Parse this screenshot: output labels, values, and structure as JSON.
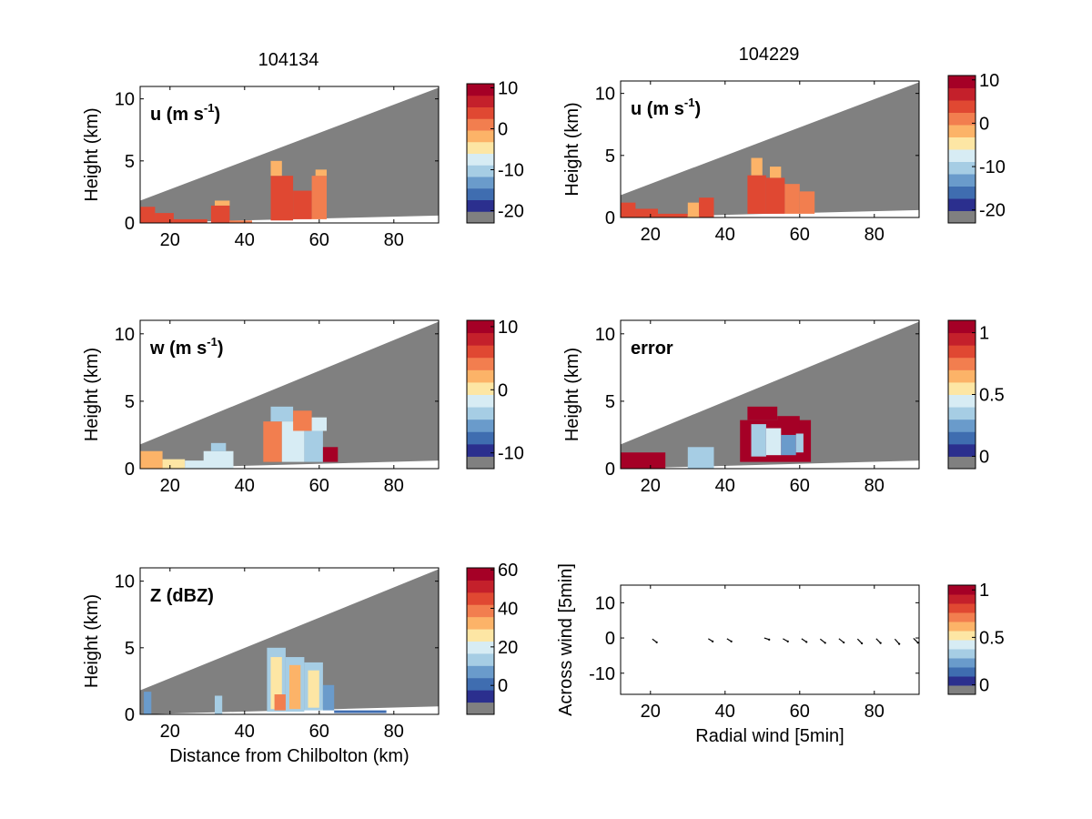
{
  "figure": {
    "timestamps": [
      "104134",
      "104229"
    ]
  },
  "palette": {
    "missing": "#808080",
    "levels": [
      "#2b2f8e",
      "#3f6db0",
      "#6a9bcb",
      "#a6cde4",
      "#d7ecf4",
      "#fde6a4",
      "#fcb368",
      "#f27e4f",
      "#e04832",
      "#c4202b",
      "#a50026"
    ]
  },
  "chart_data": [
    {
      "type": "heatmap",
      "panel": "u-104134",
      "title": "104134",
      "annotation": "u (m s",
      "annotation_sup": "-1",
      "annotation_close": ")",
      "xlabel": "",
      "ylabel": "Height (km)",
      "xlim": [
        12,
        92
      ],
      "ylim": [
        0,
        11
      ],
      "xticks": [
        "20",
        "40",
        "60",
        "80"
      ],
      "yticks": [
        "0",
        "5",
        "10"
      ],
      "scan": {
        "x_start": 12,
        "x_end": 92,
        "top_start": 1.8,
        "top_end": 10.9,
        "base_start": 0,
        "base_end": 0.6
      },
      "colorbar": {
        "range": [
          -23,
          11
        ],
        "ticks": [
          {
            "value": 10,
            "label": "10"
          },
          {
            "value": 0,
            "label": "0"
          },
          {
            "value": -10,
            "label": "-10"
          },
          {
            "value": -20,
            "label": "-20"
          }
        ]
      },
      "cells": [
        {
          "x": [
            12,
            16
          ],
          "y": [
            0.0,
            1.3
          ],
          "value": 3
        },
        {
          "x": [
            16,
            21
          ],
          "y": [
            0.0,
            0.8
          ],
          "value": 4
        },
        {
          "x": [
            21,
            30
          ],
          "y": [
            0.0,
            0.3
          ],
          "value": 2
        },
        {
          "x": [
            31,
            36
          ],
          "y": [
            0.0,
            1.4
          ],
          "value": 2
        },
        {
          "x": [
            32,
            36
          ],
          "y": [
            1.4,
            1.8
          ],
          "value": -4
        },
        {
          "x": [
            36,
            42
          ],
          "y": [
            0.0,
            0.2
          ],
          "value": 1
        },
        {
          "x": [
            47,
            53
          ],
          "y": [
            0.2,
            3.8
          ],
          "value": 2
        },
        {
          "x": [
            47,
            50
          ],
          "y": [
            3.8,
            5.0
          ],
          "value": -3
        },
        {
          "x": [
            53,
            58
          ],
          "y": [
            0.3,
            2.6
          ],
          "value": 2
        },
        {
          "x": [
            58,
            62
          ],
          "y": [
            0.3,
            3.8
          ],
          "value": 1
        },
        {
          "x": [
            59,
            62
          ],
          "y": [
            3.8,
            4.3
          ],
          "value": -4
        }
      ]
    },
    {
      "type": "heatmap",
      "panel": "u-104229",
      "title": "104229",
      "annotation": "u (m s",
      "annotation_sup": "-1",
      "annotation_close": ")",
      "xlabel": "",
      "ylabel": "Height (km)",
      "xlim": [
        12,
        92
      ],
      "ylim": [
        0,
        11
      ],
      "xticks": [
        "20",
        "40",
        "60",
        "80"
      ],
      "yticks": [
        "0",
        "5",
        "10"
      ],
      "scan": {
        "x_start": 12,
        "x_end": 92,
        "top_start": 1.8,
        "top_end": 10.9,
        "base_start": 0,
        "base_end": 0.6
      },
      "colorbar": {
        "range": [
          -23,
          11
        ],
        "ticks": [
          {
            "value": 10,
            "label": "10"
          },
          {
            "value": 0,
            "label": "0"
          },
          {
            "value": -10,
            "label": "-10"
          },
          {
            "value": -20,
            "label": "-20"
          }
        ]
      },
      "cells": [
        {
          "x": [
            12,
            16
          ],
          "y": [
            0.0,
            1.2
          ],
          "value": 3
        },
        {
          "x": [
            16,
            22
          ],
          "y": [
            0.0,
            0.7
          ],
          "value": 4
        },
        {
          "x": [
            22,
            30
          ],
          "y": [
            0.0,
            0.3
          ],
          "value": 2
        },
        {
          "x": [
            30,
            33
          ],
          "y": [
            0.0,
            1.2
          ],
          "value": -2
        },
        {
          "x": [
            33,
            37
          ],
          "y": [
            0.0,
            1.6
          ],
          "value": 2
        },
        {
          "x": [
            46,
            51
          ],
          "y": [
            0.3,
            3.4
          ],
          "value": 2
        },
        {
          "x": [
            47,
            50
          ],
          "y": [
            3.4,
            4.8
          ],
          "value": -3
        },
        {
          "x": [
            51,
            56
          ],
          "y": [
            0.3,
            3.2
          ],
          "value": 2
        },
        {
          "x": [
            52,
            55
          ],
          "y": [
            3.2,
            4.1
          ],
          "value": -4
        },
        {
          "x": [
            56,
            60
          ],
          "y": [
            0.3,
            2.7
          ],
          "value": 1
        },
        {
          "x": [
            60,
            64
          ],
          "y": [
            0.3,
            2.1
          ],
          "value": 1
        }
      ]
    },
    {
      "type": "heatmap",
      "panel": "w-104134",
      "title": "",
      "annotation": "w (m s",
      "annotation_sup": "-1",
      "annotation_close": ")",
      "xlabel": "",
      "ylabel": "Height (km)",
      "xlim": [
        12,
        92
      ],
      "ylim": [
        0,
        11
      ],
      "xticks": [
        "20",
        "40",
        "60",
        "80"
      ],
      "yticks": [
        "0",
        "5",
        "10"
      ],
      "scan": {
        "x_start": 12,
        "x_end": 92,
        "top_start": 1.8,
        "top_end": 10.9,
        "base_start": 0,
        "base_end": 0.6
      },
      "colorbar": {
        "range": [
          -12.5,
          11
        ],
        "ticks": [
          {
            "value": 10,
            "label": "10"
          },
          {
            "value": 0,
            "label": "0"
          },
          {
            "value": -10,
            "label": "-10"
          }
        ]
      },
      "cells": [
        {
          "x": [
            12,
            18
          ],
          "y": [
            0.0,
            1.3
          ],
          "value": 2
        },
        {
          "x": [
            18,
            24
          ],
          "y": [
            0.0,
            0.7
          ],
          "value": -1
        },
        {
          "x": [
            24,
            30
          ],
          "y": [
            0.0,
            0.6
          ],
          "value": -2
        },
        {
          "x": [
            29,
            37
          ],
          "y": [
            0.0,
            1.3
          ],
          "value": -2
        },
        {
          "x": [
            31,
            35
          ],
          "y": [
            1.3,
            1.9
          ],
          "value": -4
        },
        {
          "x": [
            45,
            50
          ],
          "y": [
            0.5,
            3.5
          ],
          "value": 4
        },
        {
          "x": [
            47,
            53
          ],
          "y": [
            3.5,
            4.6
          ],
          "value": -5
        },
        {
          "x": [
            50,
            56
          ],
          "y": [
            0.5,
            3.5
          ],
          "value": -3
        },
        {
          "x": [
            53,
            58
          ],
          "y": [
            2.8,
            4.3
          ],
          "value": 3
        },
        {
          "x": [
            56,
            61
          ],
          "y": [
            0.5,
            2.8
          ],
          "value": -6
        },
        {
          "x": [
            58,
            62
          ],
          "y": [
            2.8,
            3.8
          ],
          "value": -2
        },
        {
          "x": [
            61,
            65
          ],
          "y": [
            0.5,
            1.6
          ],
          "value": 9
        }
      ]
    },
    {
      "type": "heatmap",
      "panel": "error-104229",
      "title": "",
      "annotation": "error",
      "annotation_sup": "",
      "annotation_close": "",
      "xlabel": "",
      "ylabel": "Height (km)",
      "xlim": [
        12,
        92
      ],
      "ylim": [
        0,
        11
      ],
      "xticks": [
        "20",
        "40",
        "60",
        "80"
      ],
      "yticks": [
        "0",
        "5",
        "10"
      ],
      "scan": {
        "x_start": 12,
        "x_end": 92,
        "top_start": 1.8,
        "top_end": 10.9,
        "base_start": 0,
        "base_end": 0.6
      },
      "colorbar": {
        "range": [
          -0.1,
          1.1
        ],
        "ticks": [
          {
            "value": 1,
            "label": "1"
          },
          {
            "value": 0.5,
            "label": "0.5"
          },
          {
            "value": 0,
            "label": "0"
          }
        ]
      },
      "cells": [
        {
          "x": [
            12,
            24
          ],
          "y": [
            0.0,
            1.2
          ],
          "value": 1.0
        },
        {
          "x": [
            30,
            37
          ],
          "y": [
            0.0,
            1.6
          ],
          "value": 0.3
        },
        {
          "x": [
            44,
            63
          ],
          "y": [
            0.5,
            3.6
          ],
          "value": 1.0
        },
        {
          "x": [
            46,
            54
          ],
          "y": [
            3.6,
            4.6
          ],
          "value": 1.0
        },
        {
          "x": [
            54,
            60
          ],
          "y": [
            3.0,
            3.9
          ],
          "value": 1.0
        },
        {
          "x": [
            47,
            51
          ],
          "y": [
            0.9,
            3.3
          ],
          "value": 0.3
        },
        {
          "x": [
            51,
            55
          ],
          "y": [
            1.0,
            3.0
          ],
          "value": 0.4
        },
        {
          "x": [
            55,
            59
          ],
          "y": [
            1.0,
            2.5
          ],
          "value": 0.2
        },
        {
          "x": [
            59,
            61
          ],
          "y": [
            1.2,
            2.6
          ],
          "value": 0.3
        }
      ]
    },
    {
      "type": "heatmap",
      "panel": "Z-104134",
      "title": "",
      "annotation": "Z (dBZ)",
      "annotation_sup": "",
      "annotation_close": "",
      "xlabel": "Distance from Chilbolton (km)",
      "ylabel": "Height (km)",
      "xlim": [
        12,
        92
      ],
      "ylim": [
        0,
        11
      ],
      "xticks": [
        "20",
        "40",
        "60",
        "80"
      ],
      "yticks": [
        "0",
        "5",
        "10"
      ],
      "scan": {
        "x_start": 12,
        "x_end": 92,
        "top_start": 1.8,
        "top_end": 10.9,
        "base_start": 0,
        "base_end": 0.6
      },
      "colorbar": {
        "range": [
          -15,
          61
        ],
        "ticks": [
          {
            "value": 60,
            "label": "60"
          },
          {
            "value": 40,
            "label": "40"
          },
          {
            "value": 20,
            "label": "20"
          },
          {
            "value": 0,
            "label": "0"
          }
        ]
      },
      "cells": [
        {
          "x": [
            13,
            15
          ],
          "y": [
            0.0,
            1.7
          ],
          "value": 5
        },
        {
          "x": [
            32,
            34
          ],
          "y": [
            0.0,
            1.4
          ],
          "value": 8
        },
        {
          "x": [
            46,
            51
          ],
          "y": [
            0.2,
            5.0
          ],
          "value": 12
        },
        {
          "x": [
            47,
            50
          ],
          "y": [
            0.4,
            4.3
          ],
          "value": 25
        },
        {
          "x": [
            51,
            56
          ],
          "y": [
            0.2,
            4.3
          ],
          "value": 12
        },
        {
          "x": [
            52,
            55
          ],
          "y": [
            0.4,
            3.7
          ],
          "value": 30
        },
        {
          "x": [
            48,
            51
          ],
          "y": [
            0.3,
            1.5
          ],
          "value": 40
        },
        {
          "x": [
            56,
            61
          ],
          "y": [
            0.3,
            3.9
          ],
          "value": 12
        },
        {
          "x": [
            57,
            60
          ],
          "y": [
            0.5,
            3.3
          ],
          "value": 26
        },
        {
          "x": [
            61,
            64
          ],
          "y": [
            0.3,
            2.2
          ],
          "value": 5
        },
        {
          "x": [
            64,
            78
          ],
          "y": [
            0.1,
            0.3
          ],
          "value": -5
        }
      ]
    },
    {
      "type": "scatter",
      "panel": "wind-vectors",
      "title": "",
      "annotation": "",
      "xlabel": "Radial wind [5min]",
      "ylabel": "Across wind [5min]",
      "xlim": [
        12,
        92
      ],
      "ylim": [
        -16,
        15
      ],
      "xticks": [
        "20",
        "40",
        "60",
        "80"
      ],
      "yticks": [
        "10",
        "0",
        "-10"
      ],
      "colorbar": {
        "range": [
          -0.1,
          1.05
        ],
        "ticks": [
          {
            "value": 1,
            "label": "1"
          },
          {
            "value": 0.5,
            "label": "0.5"
          },
          {
            "value": 0,
            "label": "0"
          }
        ]
      },
      "vectors": [
        {
          "x": 20.5,
          "y": -0.3,
          "u": 0.8,
          "v": -0.6
        },
        {
          "x": 35.5,
          "y": -0.2,
          "u": 0.8,
          "v": -0.5
        },
        {
          "x": 40.5,
          "y": -0.2,
          "u": 0.8,
          "v": -0.5
        },
        {
          "x": 50.5,
          "y": 0.0,
          "u": 0.9,
          "v": -0.3
        },
        {
          "x": 55.5,
          "y": -0.2,
          "u": 0.9,
          "v": -0.5
        },
        {
          "x": 60.5,
          "y": -0.2,
          "u": 0.9,
          "v": -0.6
        },
        {
          "x": 65.5,
          "y": -0.3,
          "u": 0.9,
          "v": -0.7
        },
        {
          "x": 70.5,
          "y": -0.2,
          "u": 0.9,
          "v": -0.7
        },
        {
          "x": 75.5,
          "y": -0.3,
          "u": 0.8,
          "v": -0.8
        },
        {
          "x": 80.5,
          "y": -0.2,
          "u": 0.8,
          "v": -0.8
        },
        {
          "x": 85.5,
          "y": -0.3,
          "u": 0.8,
          "v": -0.9
        },
        {
          "x": 90.5,
          "y": -0.1,
          "u": 0.8,
          "v": -0.8
        }
      ]
    }
  ]
}
